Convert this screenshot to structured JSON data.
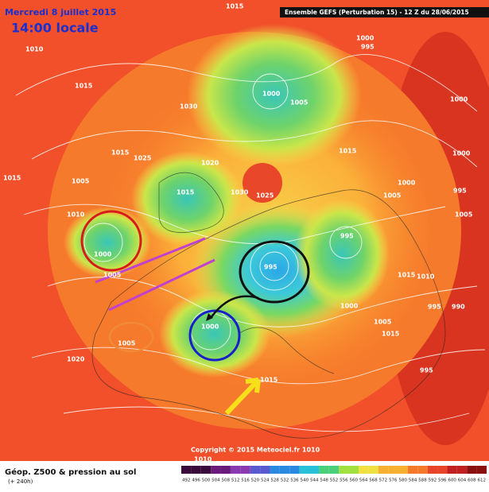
{
  "header": {
    "date": "Mercredi 8 juillet 2015",
    "time": "14:00 locale",
    "model": "Ensemble GEFS  (Perturbation 15)  -  12 Z du 28/06/2015"
  },
  "copyright": "Copyright © 2015 Meteociel.fr 1010",
  "footer": {
    "title": "Géop. Z500 & pression au sol",
    "lead_time": "(+ 240h)"
  },
  "colorbar": {
    "levels": [
      "492",
      "496",
      "500",
      "504",
      "508",
      "512",
      "516",
      "520",
      "524",
      "528",
      "532",
      "536",
      "540",
      "544",
      "548",
      "552",
      "556",
      "560",
      "564",
      "568",
      "572",
      "576",
      "580",
      "584",
      "588",
      "592",
      "596",
      "600",
      "604",
      "608",
      "612"
    ]
  },
  "isobar_labels": [
    "1015",
    "1010",
    "1015",
    "1030",
    "1000",
    "1005",
    "1000",
    "995",
    "1000",
    "1000",
    "1015",
    "1025",
    "1020",
    "1015",
    "1030",
    "1025",
    "1015",
    "1005",
    "1015",
    "1010",
    "1000",
    "1005",
    "995",
    "1000",
    "1005",
    "995",
    "1005",
    "1015",
    "995",
    "990",
    "1000",
    "1015",
    "1000",
    "1005",
    "1020",
    "995",
    "1015",
    "1010",
    "1005",
    "1010",
    "995"
  ]
}
